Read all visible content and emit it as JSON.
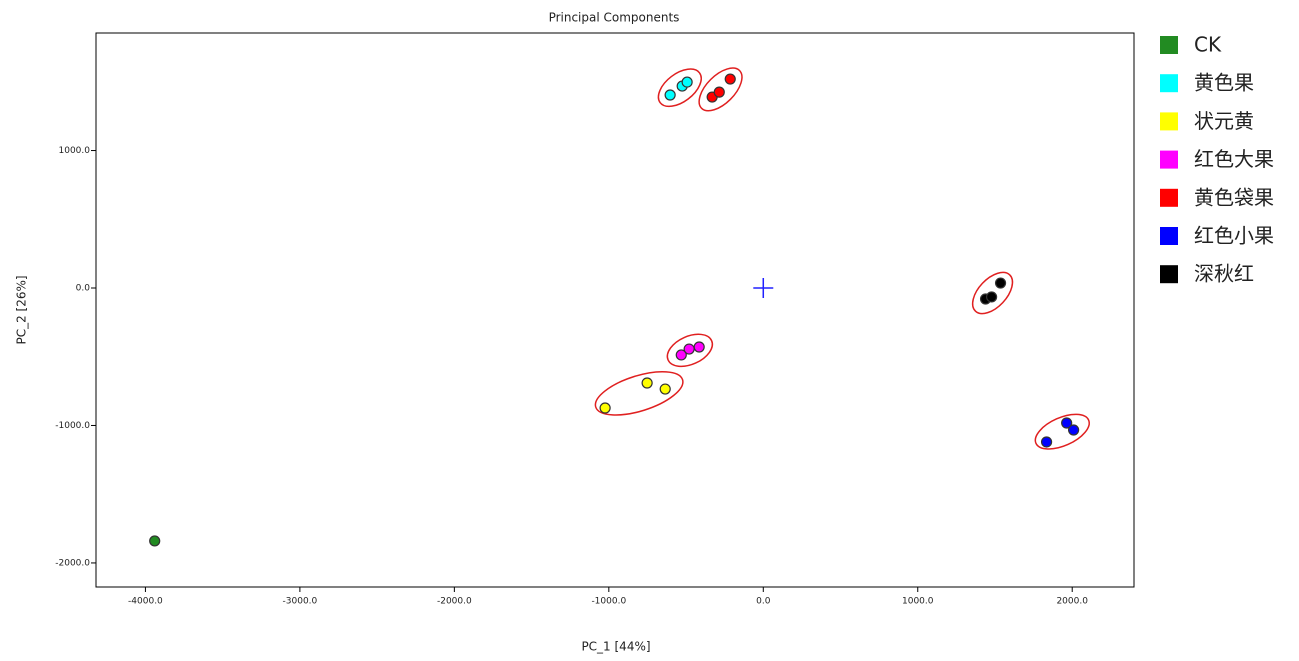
{
  "chart_data": {
    "type": "scatter",
    "title": "Principal Components",
    "xlabel": "PC_1 [44%]",
    "ylabel": "PC_2 [26%]",
    "xlim": [
      -4320,
      2400
    ],
    "ylim": [
      -2175,
      1855
    ],
    "xticks": [
      {
        "value": -4000,
        "label": "-4000.0"
      },
      {
        "value": -3000,
        "label": "-3000.0"
      },
      {
        "value": -2000,
        "label": "-2000.0"
      },
      {
        "value": -1000,
        "label": "-1000.0"
      },
      {
        "value": 0,
        "label": "0.0"
      },
      {
        "value": 1000,
        "label": "1000.0"
      },
      {
        "value": 2000,
        "label": "2000.0"
      }
    ],
    "yticks": [
      {
        "value": -2000,
        "label": "-2000.0"
      },
      {
        "value": -1000,
        "label": "-1000.0"
      },
      {
        "value": 0,
        "label": "0.0"
      },
      {
        "value": 1000,
        "label": "1000.0"
      }
    ],
    "legend": "right",
    "series": [
      {
        "name": "CK",
        "color": "#228b22",
        "x": [
          -3940
        ],
        "values": [
          -1840
        ]
      },
      {
        "name": "黄色果",
        "color": "#00ffff",
        "x": [
          -603,
          -525,
          -493
        ],
        "values": [
          1404,
          1469,
          1498
        ]
      },
      {
        "name": "状元黄",
        "color": "#ffff00",
        "x": [
          -1024,
          -752,
          -635
        ],
        "values": [
          -873,
          -691,
          -735
        ]
      },
      {
        "name": "红色大果",
        "color": "#ff00ff",
        "x": [
          -531,
          -480,
          -415
        ],
        "values": [
          -487,
          -444,
          -429
        ]
      },
      {
        "name": "黄色袋果",
        "color": "#ff0000",
        "x": [
          -331,
          -285,
          -214
        ],
        "values": [
          1389,
          1425,
          1520
        ]
      },
      {
        "name": "红色小果",
        "color": "#0000ff",
        "x": [
          1834,
          1964,
          2009
        ],
        "values": [
          -1120,
          -982,
          -1033
        ]
      },
      {
        "name": "深秋红",
        "color": "#000000",
        "x": [
          1439,
          1478,
          1536
        ],
        "values": [
          -80,
          -65,
          36
        ]
      }
    ]
  }
}
